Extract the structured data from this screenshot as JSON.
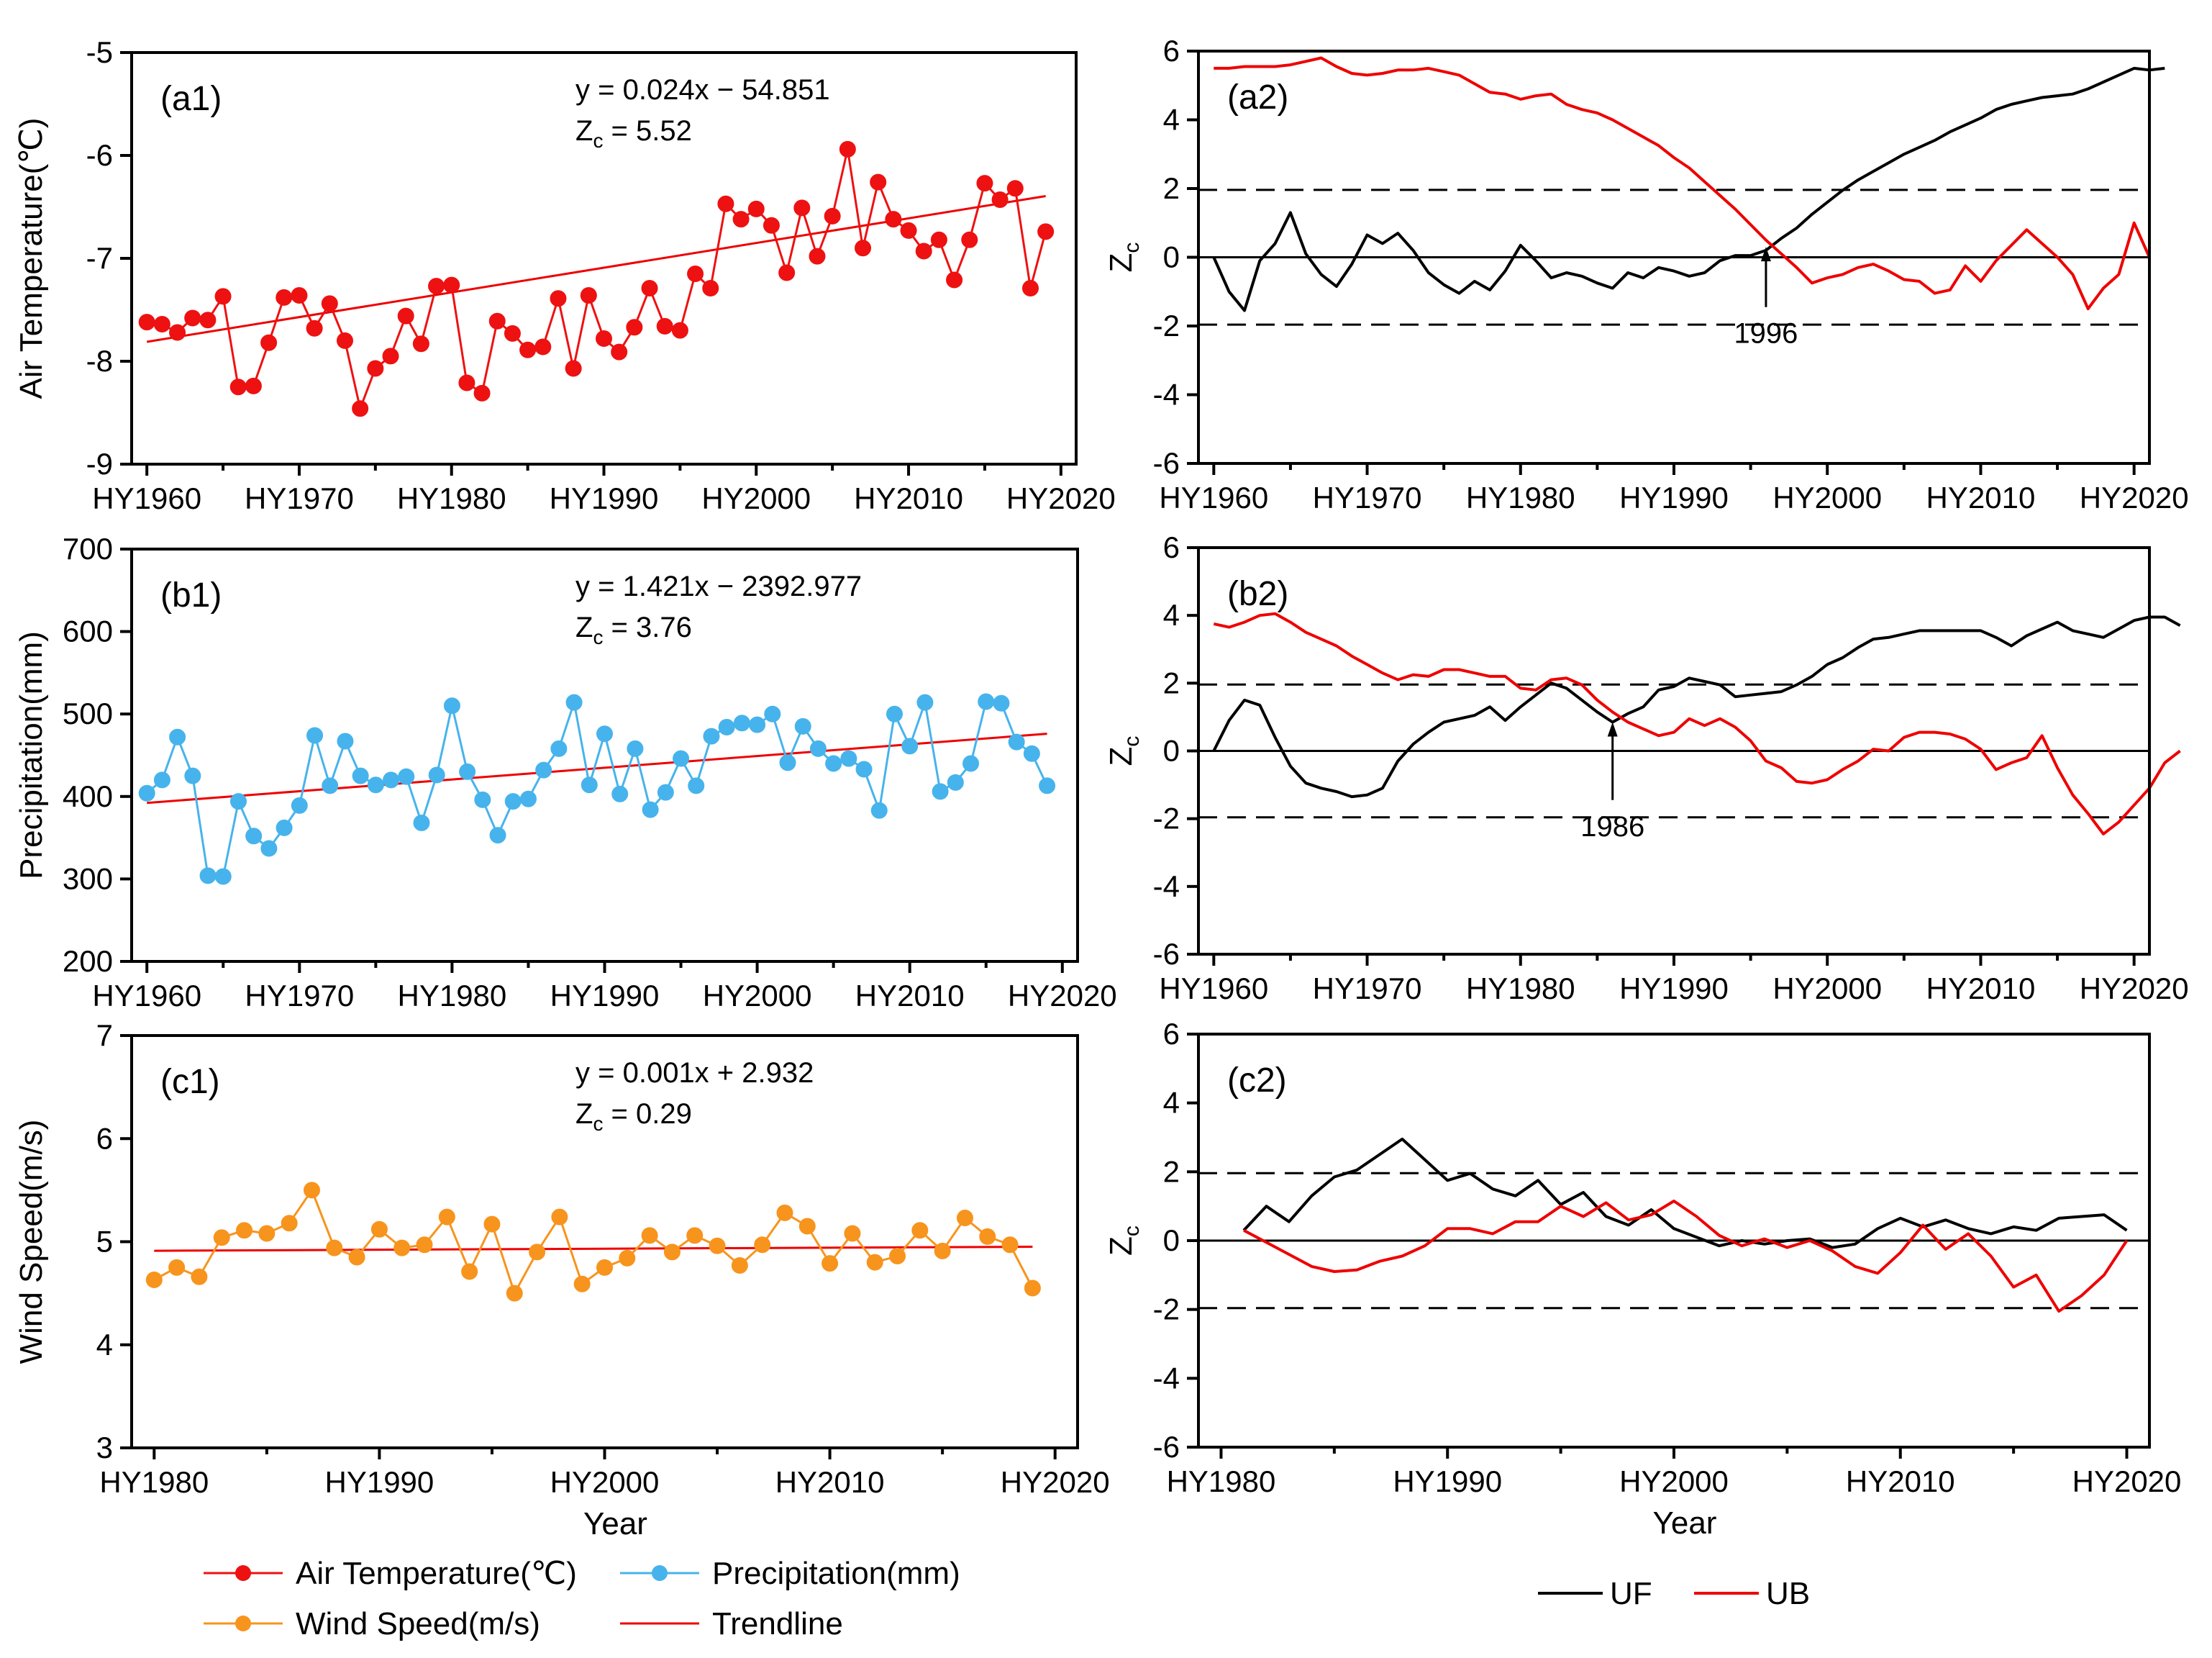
{
  "colors": {
    "air_temperature": "#ee1111",
    "precipitation": "#47b3ec",
    "wind_speed": "#f7941d",
    "trendline": "#ee0000",
    "uf": "#000000",
    "ub": "#ee0000"
  },
  "legend_left": {
    "air_temperature": "Air Temperature(℃)",
    "precipitation": "Precipitation(mm)",
    "wind_speed": "Wind Speed(m/s)",
    "trendline": "Trendline"
  },
  "legend_right": {
    "uf": "UF",
    "ub": "UB"
  },
  "shared_xlabel": "Year",
  "chart_data": [
    {
      "id": "a1",
      "type": "line",
      "panel_label": "(a1)",
      "ylabel": "Air Temperature(℃)",
      "ylim": [
        -9,
        -5
      ],
      "yticks": [
        -9,
        -8,
        -7,
        -6,
        -5
      ],
      "xlim": [
        1959,
        2021
      ],
      "xticks": [
        1960,
        1970,
        1980,
        1990,
        2000,
        2010,
        2020
      ],
      "xtick_labels": [
        "HY1960",
        "HY1970",
        "HY1980",
        "HY1990",
        "HY2000",
        "HY2010",
        "HY2020"
      ],
      "equation": "y = 0.024x − 54.851",
      "zc_value": "= 5.52",
      "trend": {
        "slope": 0.024,
        "intercept": -54.851
      },
      "series": [
        {
          "name": "Air Temperature(℃)",
          "start_year": 1960,
          "values": [
            -7.62,
            -7.64,
            -7.72,
            -7.58,
            -7.6,
            -7.37,
            -8.25,
            -8.24,
            -7.82,
            -7.38,
            -7.36,
            -7.68,
            -7.44,
            -7.8,
            -8.46,
            -8.07,
            -7.95,
            -7.56,
            -7.83,
            -7.27,
            -7.26,
            -8.21,
            -8.31,
            -7.61,
            -7.73,
            -7.89,
            -7.86,
            -7.39,
            -8.07,
            -7.36,
            -7.78,
            -7.91,
            -7.67,
            -7.29,
            -7.66,
            -7.7,
            -7.15,
            -7.29,
            -6.47,
            -6.62,
            -6.52,
            -6.68,
            -7.14,
            -6.51,
            -6.98,
            -6.59,
            -5.94,
            -6.9,
            -6.26,
            -6.62,
            -6.73,
            -6.93,
            -6.82,
            -7.21,
            -6.82,
            -6.27,
            -6.43,
            -6.32,
            -7.29,
            -6.74
          ]
        }
      ]
    },
    {
      "id": "b1",
      "type": "line",
      "panel_label": "(b1)",
      "ylabel": "Precipitation(mm)",
      "ylim": [
        200,
        700
      ],
      "yticks": [
        200,
        300,
        400,
        500,
        600,
        700
      ],
      "xlim": [
        1959,
        2021
      ],
      "xticks": [
        1960,
        1970,
        1980,
        1990,
        2000,
        2010,
        2020
      ],
      "xtick_labels": [
        "HY1960",
        "HY1970",
        "HY1980",
        "HY1990",
        "HY2000",
        "HY2010",
        "HY2020"
      ],
      "equation": "y = 1.421x − 2392.977",
      "zc_value": "= 3.76",
      "trend": {
        "slope": 1.421,
        "intercept": -2392.977
      },
      "series": [
        {
          "name": "Precipitation(mm)",
          "start_year": 1960,
          "values": [
            404,
            420,
            472,
            425,
            304,
            303,
            394,
            352,
            337,
            362,
            389,
            474,
            413,
            467,
            425,
            414,
            420,
            424,
            368,
            426,
            510,
            430,
            396,
            353,
            394,
            397,
            432,
            458,
            514,
            414,
            476,
            403,
            458,
            384,
            405,
            446,
            413,
            473,
            484,
            489,
            487,
            500,
            441,
            485,
            458,
            440,
            446,
            433,
            383,
            500,
            461,
            514,
            406,
            417,
            440,
            515,
            513,
            466,
            452,
            413
          ]
        }
      ]
    },
    {
      "id": "c1",
      "type": "line",
      "panel_label": "(c1)",
      "ylabel": "Wind Speed(m/s)",
      "ylim": [
        3,
        7
      ],
      "yticks": [
        3,
        4,
        5,
        6,
        7
      ],
      "xlim": [
        1979,
        2021
      ],
      "xticks": [
        1980,
        1990,
        2000,
        2010,
        2020
      ],
      "xtick_labels": [
        "HY1980",
        "HY1990",
        "HY2000",
        "HY2010",
        "HY2020"
      ],
      "xlabel": "Year",
      "equation": "y = 0.001x + 2.932",
      "zc_value": "= 0.29",
      "trend": {
        "slope": 0.001,
        "intercept": 2.932
      },
      "series": [
        {
          "name": "Wind Speed(m/s)",
          "start_year": 1980,
          "values": [
            4.63,
            4.75,
            4.66,
            5.04,
            5.11,
            5.08,
            5.18,
            5.5,
            4.94,
            4.85,
            5.12,
            4.94,
            4.97,
            5.24,
            4.71,
            5.17,
            4.5,
            4.9,
            5.24,
            4.59,
            4.75,
            4.84,
            5.06,
            4.9,
            5.06,
            4.96,
            4.77,
            4.97,
            5.28,
            5.15,
            4.79,
            5.08,
            4.8,
            4.86,
            5.11,
            4.91,
            5.23,
            5.05,
            4.97,
            4.55
          ]
        }
      ]
    },
    {
      "id": "a2",
      "type": "line",
      "panel_label": "(a2)",
      "ylabel": "Z",
      "ylabel_sub": "c",
      "ylim": [
        -6,
        6
      ],
      "yticks": [
        -6,
        -4,
        -2,
        0,
        2,
        4,
        6
      ],
      "xlim": [
        1959,
        2021
      ],
      "xticks": [
        1960,
        1970,
        1980,
        1990,
        2000,
        2010,
        2020
      ],
      "xtick_labels": [
        "HY1960",
        "HY1970",
        "HY1980",
        "HY1990",
        "HY2000",
        "HY2010",
        "HY2020"
      ],
      "critical_lines": [
        -1.96,
        1.96
      ],
      "change_point": {
        "year": 1996,
        "label": "1996",
        "z": 0.3
      },
      "series": [
        {
          "name": "UF",
          "start_year": 1960,
          "values": [
            0,
            -1.0,
            -1.55,
            -0.1,
            0.4,
            1.3,
            0.1,
            -0.5,
            -0.85,
            -0.2,
            0.65,
            0.4,
            0.7,
            0.2,
            -0.45,
            -0.8,
            -1.05,
            -0.7,
            -0.95,
            -0.4,
            0.35,
            -0.1,
            -0.6,
            -0.45,
            -0.55,
            -0.75,
            -0.9,
            -0.45,
            -0.6,
            -0.3,
            -0.4,
            -0.55,
            -0.45,
            -0.1,
            0.05,
            0.05,
            0.2,
            0.55,
            0.85,
            1.25,
            1.6,
            1.95,
            2.25,
            2.5,
            2.75,
            3.0,
            3.2,
            3.4,
            3.65,
            3.85,
            4.05,
            4.3,
            4.45,
            4.55,
            4.65,
            4.7,
            4.75,
            4.9,
            5.1,
            5.3,
            5.5,
            5.45,
            5.5
          ]
        },
        {
          "name": "UB",
          "start_year": 1960,
          "values": [
            5.5,
            5.5,
            5.55,
            5.55,
            5.55,
            5.6,
            5.7,
            5.8,
            5.55,
            5.35,
            5.3,
            5.35,
            5.45,
            5.45,
            5.5,
            5.4,
            5.3,
            5.05,
            4.8,
            4.75,
            4.6,
            4.7,
            4.75,
            4.45,
            4.3,
            4.2,
            4.0,
            3.75,
            3.5,
            3.25,
            2.9,
            2.6,
            2.2,
            1.8,
            1.4,
            0.95,
            0.5,
            0.1,
            -0.3,
            -0.75,
            -0.6,
            -0.5,
            -0.3,
            -0.2,
            -0.4,
            -0.65,
            -0.7,
            -1.05,
            -0.95,
            -0.25,
            -0.7,
            -0.1,
            0.35,
            0.8,
            0.4,
            0.0,
            -0.5,
            -1.5,
            -0.9,
            -0.5,
            1.0,
            0.0
          ]
        }
      ]
    },
    {
      "id": "b2",
      "type": "line",
      "panel_label": "(b2)",
      "ylabel": "Z",
      "ylabel_sub": "c",
      "ylim": [
        -6,
        6
      ],
      "yticks": [
        -6,
        -4,
        -2,
        0,
        2,
        4,
        6
      ],
      "xlim": [
        1959,
        2021
      ],
      "xticks": [
        1960,
        1970,
        1980,
        1990,
        2000,
        2010,
        2020
      ],
      "xtick_labels": [
        "HY1960",
        "HY1970",
        "HY1980",
        "HY1990",
        "HY2000",
        "HY2010",
        "HY2020"
      ],
      "critical_lines": [
        -1.96,
        1.96
      ],
      "change_point": {
        "year": 1986,
        "label": "1986",
        "z": 0.85
      },
      "series": [
        {
          "name": "UF",
          "start_year": 1960,
          "values": [
            0,
            0.9,
            1.5,
            1.35,
            0.4,
            -0.45,
            -0.95,
            -1.1,
            -1.2,
            -1.35,
            -1.3,
            -1.1,
            -0.3,
            0.2,
            0.55,
            0.85,
            0.95,
            1.05,
            1.3,
            0.9,
            1.3,
            1.65,
            2.0,
            1.85,
            1.5,
            1.15,
            0.85,
            1.1,
            1.3,
            1.8,
            1.9,
            2.15,
            2.05,
            1.95,
            1.6,
            1.65,
            1.7,
            1.75,
            1.95,
            2.2,
            2.55,
            2.75,
            3.05,
            3.3,
            3.35,
            3.45,
            3.55,
            3.55,
            3.55,
            3.55,
            3.55,
            3.35,
            3.1,
            3.4,
            3.6,
            3.8,
            3.55,
            3.45,
            3.35,
            3.6,
            3.85,
            3.95,
            3.95,
            3.7
          ]
        },
        {
          "name": "UB",
          "start_year": 1960,
          "values": [
            3.75,
            3.65,
            3.8,
            4.0,
            4.05,
            3.8,
            3.5,
            3.3,
            3.1,
            2.8,
            2.55,
            2.3,
            2.1,
            2.25,
            2.2,
            2.4,
            2.4,
            2.3,
            2.2,
            2.2,
            1.85,
            1.8,
            2.1,
            2.15,
            1.95,
            1.5,
            1.15,
            0.85,
            0.65,
            0.45,
            0.55,
            0.95,
            0.75,
            0.95,
            0.7,
            0.3,
            -0.3,
            -0.5,
            -0.9,
            -0.95,
            -0.85,
            -0.55,
            -0.3,
            0.05,
            0.0,
            0.4,
            0.55,
            0.55,
            0.5,
            0.35,
            0.05,
            -0.55,
            -0.35,
            -0.2,
            0.45,
            -0.5,
            -1.3,
            -1.85,
            -2.45,
            -2.1,
            -1.6,
            -1.1,
            -0.35,
            0.0
          ]
        }
      ]
    },
    {
      "id": "c2",
      "type": "line",
      "panel_label": "(c2)",
      "ylabel": "Z",
      "ylabel_sub": "c",
      "ylim": [
        -6,
        6
      ],
      "yticks": [
        -6,
        -4,
        -2,
        0,
        2,
        4,
        6
      ],
      "xlim": [
        1979,
        2021
      ],
      "xticks": [
        1980,
        1990,
        2000,
        2010,
        2020
      ],
      "xtick_labels": [
        "HY1980",
        "HY1990",
        "HY2000",
        "HY2010",
        "HY2020"
      ],
      "xlabel": "Year",
      "critical_lines": [
        -1.96,
        1.96
      ],
      "series": [
        {
          "name": "UF",
          "start_year": 1981,
          "values": [
            0.3,
            1.0,
            0.55,
            1.3,
            1.85,
            2.05,
            2.5,
            2.95,
            2.35,
            1.75,
            1.95,
            1.5,
            1.3,
            1.75,
            1.05,
            1.4,
            0.7,
            0.45,
            0.9,
            0.35,
            0.1,
            -0.15,
            0.0,
            -0.1,
            0.0,
            0.05,
            -0.2,
            -0.1,
            0.35,
            0.65,
            0.4,
            0.6,
            0.35,
            0.2,
            0.4,
            0.3,
            0.65,
            0.7,
            0.75,
            0.3
          ]
        },
        {
          "name": "UB",
          "start_year": 1981,
          "values": [
            0.3,
            -0.05,
            -0.4,
            -0.75,
            -0.9,
            -0.85,
            -0.6,
            -0.45,
            -0.15,
            0.35,
            0.35,
            0.2,
            0.55,
            0.55,
            1.0,
            0.7,
            1.1,
            0.6,
            0.75,
            1.15,
            0.7,
            0.15,
            -0.15,
            0.05,
            -0.2,
            0.0,
            -0.3,
            -0.75,
            -0.95,
            -0.35,
            0.45,
            -0.25,
            0.2,
            -0.45,
            -1.35,
            -1.0,
            -2.05,
            -1.6,
            -1.0,
            0.0
          ]
        }
      ]
    }
  ]
}
